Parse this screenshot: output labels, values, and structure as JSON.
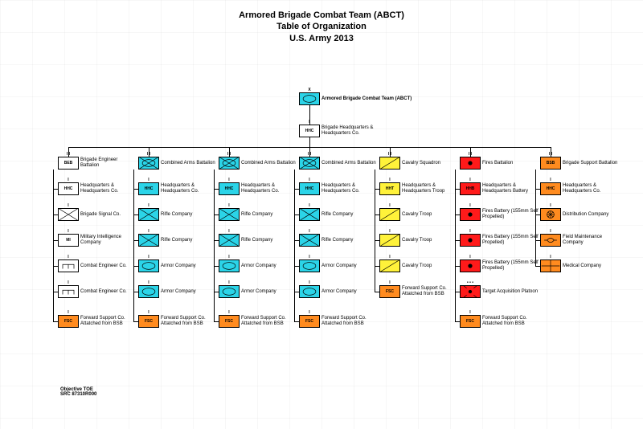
{
  "title": {
    "line1": "Armored Brigade Combat Team (ABCT)",
    "line2": "Table of Organization",
    "line3": "U.S. Army 2013"
  },
  "colors": {
    "cyan": "#2bd4e8",
    "yellow": "#fff23a",
    "red": "#ff1a1a",
    "orange": "#ff8b1f",
    "white": "#ffffff",
    "black": "#000000"
  },
  "root": {
    "echelon": "X",
    "label": "Armored Brigade Combat Team (ABCT)",
    "color": "cyan",
    "sym": "armor"
  },
  "hhc": {
    "text": "HHC",
    "label": "Brigade Headquarters & Headquarters Co.",
    "color": "white"
  },
  "columns": [
    {
      "header": {
        "text": "BEB",
        "label": "Brigade Engineer Battalion",
        "color": "white",
        "ech": "I I"
      },
      "units": [
        {
          "text": "HHC",
          "label": "Headquarters & Headquarters Co.",
          "color": "white",
          "ech": "I"
        },
        {
          "sym": "signal",
          "label": "Brigade Signal Co.",
          "color": "white",
          "ech": "I"
        },
        {
          "text": "MI",
          "label": "Military Intelligence Company",
          "color": "white",
          "ech": "I"
        },
        {
          "sym": "engineer",
          "label": "Combat Engineer Co.",
          "color": "white",
          "ech": "I"
        },
        {
          "sym": "engineer",
          "label": "Combat Engineer Co.",
          "color": "white",
          "ech": "I"
        },
        {
          "text": "FSC",
          "label": "Forward Support Co. Attatched from BSB",
          "color": "orange",
          "ech": "I"
        }
      ]
    },
    {
      "header": {
        "sym": "ca",
        "label": "Combined Arms Battalion",
        "color": "cyan",
        "ech": "I I"
      },
      "units": [
        {
          "text": "HHC",
          "label": "Headquarters & Headquarters Co.",
          "color": "cyan",
          "ech": "I"
        },
        {
          "sym": "inf",
          "label": "Rifle Company",
          "color": "cyan",
          "ech": "I"
        },
        {
          "sym": "inf",
          "label": "Rifle Company",
          "color": "cyan",
          "ech": "I"
        },
        {
          "sym": "armor",
          "label": "Armor Company",
          "color": "cyan",
          "ech": "I"
        },
        {
          "sym": "armor",
          "label": "Armor Company",
          "color": "cyan",
          "ech": "I"
        },
        {
          "text": "FSC",
          "label": "Forward Support Co. Attatched from BSB",
          "color": "orange",
          "ech": "I"
        }
      ]
    },
    {
      "header": {
        "sym": "ca",
        "label": "Combined Arms Battalion",
        "color": "cyan",
        "ech": "I I"
      },
      "units": [
        {
          "text": "HHC",
          "label": "Headquarters & Headquarters Co.",
          "color": "cyan",
          "ech": "I"
        },
        {
          "sym": "inf",
          "label": "Rifle Company",
          "color": "cyan",
          "ech": "I"
        },
        {
          "sym": "inf",
          "label": "Rifle Company",
          "color": "cyan",
          "ech": "I"
        },
        {
          "sym": "armor",
          "label": "Armor Company",
          "color": "cyan",
          "ech": "I"
        },
        {
          "sym": "armor",
          "label": "Armor Company",
          "color": "cyan",
          "ech": "I"
        },
        {
          "text": "FSC",
          "label": "Forward Support Co. Attatched from BSB",
          "color": "orange",
          "ech": "I"
        }
      ]
    },
    {
      "header": {
        "sym": "ca",
        "label": "Combined Arms Battalion",
        "color": "cyan",
        "ech": "I I"
      },
      "units": [
        {
          "text": "HHC",
          "label": "Headquarters & Headquarters Co.",
          "color": "cyan",
          "ech": "I"
        },
        {
          "sym": "inf",
          "label": "Rifle Company",
          "color": "cyan",
          "ech": "I"
        },
        {
          "sym": "inf",
          "label": "Rifle Company",
          "color": "cyan",
          "ech": "I"
        },
        {
          "sym": "armor",
          "label": "Armor Company",
          "color": "cyan",
          "ech": "I"
        },
        {
          "sym": "armor",
          "label": "Armor Company",
          "color": "cyan",
          "ech": "I"
        },
        {
          "text": "FSC",
          "label": "Forward Support Co. Attatched from BSB",
          "color": "orange",
          "ech": "I"
        }
      ]
    },
    {
      "header": {
        "sym": "cav",
        "label": "Cavalry Squadron",
        "color": "yellow",
        "ech": "I I"
      },
      "units": [
        {
          "text": "HHT",
          "label": "Headquarters & Headquarters Troop",
          "color": "yellow",
          "ech": "I"
        },
        {
          "sym": "cav",
          "label": "Cavalry Troop",
          "color": "yellow",
          "ech": "I"
        },
        {
          "sym": "cav",
          "label": "Cavalry Troop",
          "color": "yellow",
          "ech": "I"
        },
        {
          "sym": "cav",
          "label": "Cavalry Troop",
          "color": "yellow",
          "ech": "I"
        },
        {
          "text": "FSC",
          "label": "Forward Support Co. Attatched from BSB",
          "color": "orange",
          "ech": "I"
        },
        {
          "skip": true
        }
      ]
    },
    {
      "header": {
        "sym": "arty",
        "label": "Fires Battalion",
        "color": "red",
        "ech": "I I"
      },
      "units": [
        {
          "text": "HHB",
          "label": "Headquarters & Headquarters Battery",
          "color": "red",
          "ech": "I"
        },
        {
          "sym": "arty",
          "label": "Fires Battery (155mm Self Propelled)",
          "color": "red",
          "ech": "I"
        },
        {
          "sym": "arty",
          "label": "Fires Battery (155mm Self Propelled)",
          "color": "red",
          "ech": "I"
        },
        {
          "sym": "arty",
          "label": "Fires Battery (155mm Self Propelled)",
          "color": "red",
          "ech": "I"
        },
        {
          "sym": "ta",
          "label": "Target Acquisition Platoon",
          "color": "red",
          "ech": "• • •"
        },
        {
          "text": "FSC",
          "label": "Forward Support Co. Attatched from BSB",
          "color": "orange",
          "ech": "I"
        }
      ]
    },
    {
      "header": {
        "text": "BSB",
        "label": "Brigade Support Battalion",
        "color": "orange",
        "ech": "I I"
      },
      "units": [
        {
          "text": "HHC",
          "label": "Headquarters & Headquarters Co.",
          "color": "orange",
          "ech": "I"
        },
        {
          "sym": "dist",
          "label": "Distribution Company",
          "color": "orange",
          "ech": "I"
        },
        {
          "sym": "maint",
          "label": "Field Maintenance Company",
          "color": "orange",
          "ech": "I"
        },
        {
          "sym": "med",
          "label": "Medical Company",
          "color": "orange",
          "ech": "I"
        },
        {
          "skip": true
        },
        {
          "skip": true
        }
      ]
    }
  ],
  "footer": {
    "line1": "Objective TOE",
    "line2": "SRC 87310R000"
  }
}
